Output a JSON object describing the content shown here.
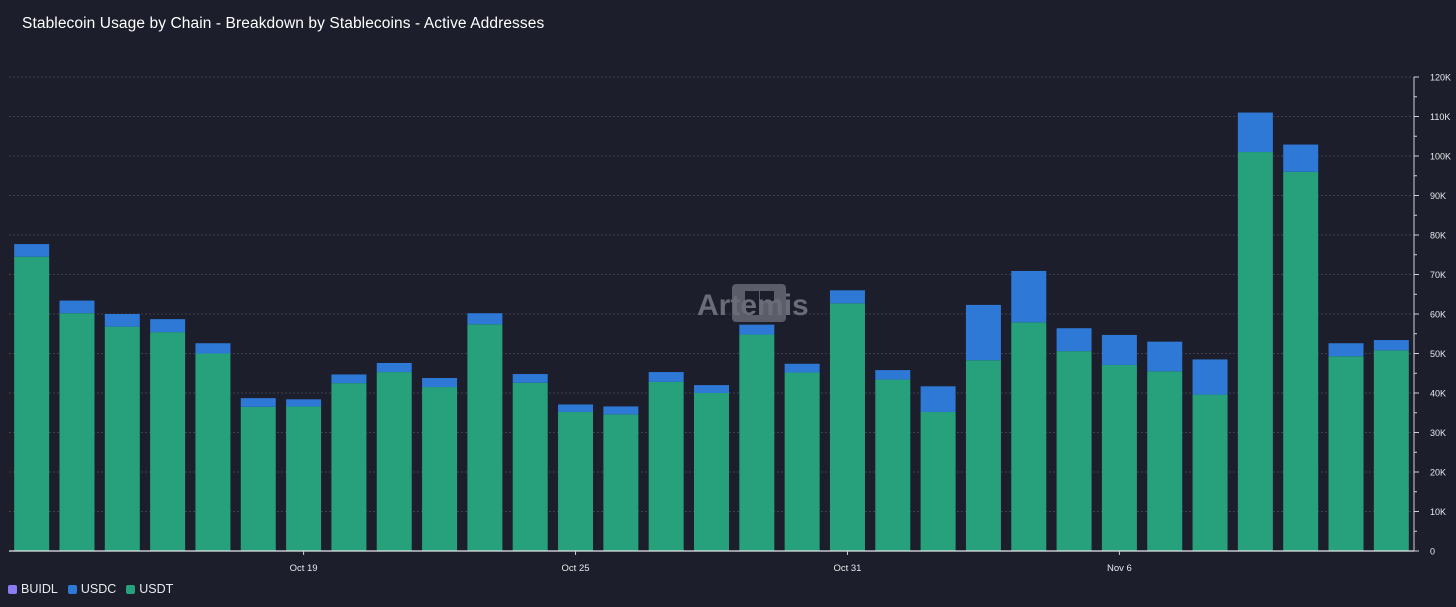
{
  "chart_data": {
    "type": "bar",
    "stacked": true,
    "title": "Stablecoin Usage by Chain - Breakdown by Stablecoins - Active Addresses",
    "watermark": "Artemis",
    "xlabel": "",
    "ylabel": "",
    "ylim": [
      0,
      120000
    ],
    "y_ticks": [
      0,
      10000,
      20000,
      30000,
      40000,
      50000,
      60000,
      70000,
      80000,
      90000,
      100000,
      110000,
      120000
    ],
    "y_tick_labels": [
      "0",
      "10K",
      "20K",
      "30K",
      "40K",
      "50K",
      "60K",
      "70K",
      "80K",
      "90K",
      "100K",
      "110K",
      "120K"
    ],
    "x_tick_labels": [
      {
        "index": 6,
        "label": "Oct 19"
      },
      {
        "index": 12,
        "label": "Oct 25"
      },
      {
        "index": 18,
        "label": "Oct 31"
      },
      {
        "index": 24,
        "label": "Nov 6"
      }
    ],
    "grid": true,
    "legend_position": "bottom-left",
    "series": [
      {
        "name": "BUIDL",
        "color": "#8b7cf6",
        "values": [
          0,
          0,
          0,
          0,
          0,
          0,
          0,
          0,
          0,
          0,
          0,
          0,
          0,
          0,
          0,
          0,
          0,
          0,
          0,
          0,
          0,
          0,
          0,
          0,
          0,
          0,
          0,
          0,
          0,
          0,
          0
        ]
      },
      {
        "name": "USDC",
        "color": "#2e78d6",
        "values": [
          3200,
          3200,
          3200,
          3300,
          2600,
          2200,
          1800,
          2200,
          2300,
          2300,
          2800,
          2200,
          1900,
          2000,
          2500,
          2000,
          2500,
          2200,
          3300,
          2400,
          6500,
          14000,
          13000,
          5800,
          7600,
          7500,
          8900,
          10000,
          6900,
          3300,
          2600
        ]
      },
      {
        "name": "USDT",
        "color": "#26a17b",
        "values": [
          74500,
          60200,
          56800,
          55400,
          50000,
          36500,
          36600,
          42500,
          45300,
          41500,
          57400,
          42600,
          35200,
          34600,
          42800,
          40000,
          54800,
          45200,
          62700,
          43400,
          35200,
          48300,
          57900,
          50600,
          47100,
          45500,
          39600,
          101000,
          96000,
          49300,
          50800
        ]
      }
    ]
  }
}
